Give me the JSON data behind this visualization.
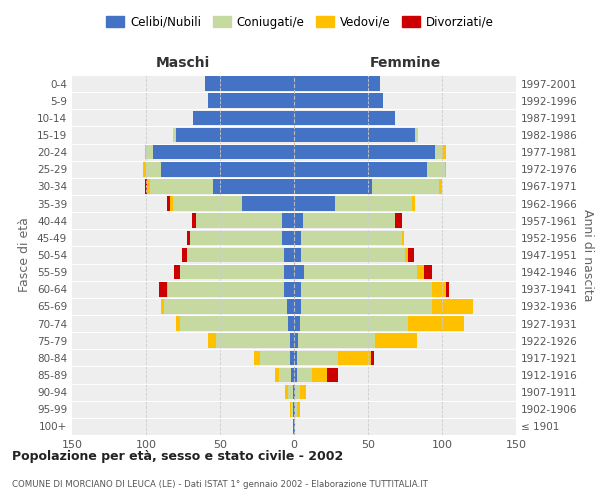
{
  "age_groups": [
    "100+",
    "95-99",
    "90-94",
    "85-89",
    "80-84",
    "75-79",
    "70-74",
    "65-69",
    "60-64",
    "55-59",
    "50-54",
    "45-49",
    "40-44",
    "35-39",
    "30-34",
    "25-29",
    "20-24",
    "15-19",
    "10-14",
    "5-9",
    "0-4"
  ],
  "birth_years": [
    "≤ 1901",
    "1902-1906",
    "1907-1911",
    "1912-1916",
    "1917-1921",
    "1922-1926",
    "1927-1931",
    "1932-1936",
    "1937-1941",
    "1942-1946",
    "1947-1951",
    "1952-1956",
    "1957-1961",
    "1962-1966",
    "1967-1971",
    "1972-1976",
    "1977-1981",
    "1982-1986",
    "1987-1991",
    "1992-1996",
    "1997-2001"
  ],
  "male_celibi": [
    1,
    1,
    1,
    2,
    3,
    3,
    4,
    5,
    7,
    7,
    7,
    8,
    8,
    35,
    55,
    90,
    95,
    80,
    68,
    58,
    60
  ],
  "male_coniugati": [
    0,
    1,
    3,
    8,
    20,
    50,
    73,
    83,
    78,
    70,
    65,
    62,
    58,
    47,
    42,
    10,
    5,
    2,
    0,
    0,
    0
  ],
  "male_vedovi": [
    0,
    1,
    2,
    3,
    4,
    5,
    3,
    2,
    1,
    0,
    0,
    0,
    0,
    2,
    2,
    2,
    1,
    0,
    0,
    0,
    0
  ],
  "male_divorziati": [
    0,
    0,
    0,
    0,
    0,
    0,
    0,
    0,
    5,
    4,
    4,
    2,
    3,
    2,
    2,
    0,
    0,
    0,
    0,
    0,
    0
  ],
  "female_nubili": [
    1,
    1,
    1,
    2,
    2,
    3,
    4,
    5,
    5,
    7,
    5,
    5,
    6,
    28,
    53,
    90,
    95,
    82,
    68,
    60,
    58
  ],
  "female_coniugate": [
    0,
    1,
    3,
    10,
    28,
    52,
    73,
    88,
    88,
    76,
    70,
    68,
    62,
    52,
    45,
    12,
    5,
    2,
    0,
    0,
    0
  ],
  "female_vedove": [
    0,
    2,
    4,
    10,
    22,
    28,
    38,
    28,
    10,
    5,
    2,
    1,
    0,
    2,
    2,
    1,
    3,
    0,
    0,
    0,
    0
  ],
  "female_divorziate": [
    0,
    0,
    0,
    8,
    2,
    0,
    0,
    0,
    2,
    5,
    4,
    0,
    5,
    0,
    0,
    0,
    0,
    0,
    0,
    0,
    0
  ],
  "color_celibi": "#4472c4",
  "color_coniugati": "#c5d9a0",
  "color_vedovi": "#ffc000",
  "color_divorziati": "#cc0000",
  "xlim": 150,
  "title": "Popolazione per età, sesso e stato civile - 2002",
  "subtitle": "COMUNE DI MORCIANO DI LEUCA (LE) - Dati ISTAT 1° gennaio 2002 - Elaborazione TUTTITALIA.IT",
  "ylabel_left": "Fasce di età",
  "ylabel_right": "Anni di nascita",
  "xlabel_left": "Maschi",
  "xlabel_right": "Femmine",
  "legend_labels": [
    "Celibi/Nubili",
    "Coniugati/e",
    "Vedovi/e",
    "Divorziati/e"
  ],
  "bg_color": "#eeeeee",
  "bar_height": 0.85
}
